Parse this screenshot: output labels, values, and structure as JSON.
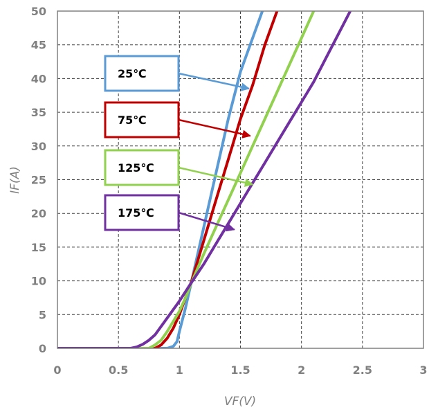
{
  "chart_data": {
    "type": "line",
    "xlabel": "VF(V)",
    "ylabel": "IF(A)",
    "xlim": [
      0,
      3
    ],
    "ylim": [
      0,
      50
    ],
    "xticks": [
      "0",
      "0.5",
      "1",
      "1.5",
      "2",
      "2.5",
      "3"
    ],
    "yticks": [
      "0",
      "5",
      "10",
      "15",
      "20",
      "25",
      "30",
      "35",
      "40",
      "45",
      "50"
    ],
    "grid": true,
    "series": [
      {
        "name": "25℃",
        "color": "#5B9BD5",
        "x": [
          0,
          0.9,
          0.95,
          0.98,
          1.0,
          1.05,
          1.1,
          1.2,
          1.3,
          1.4,
          1.5,
          1.6,
          1.68
        ],
        "y": [
          0,
          0,
          0.3,
          1,
          2.5,
          6,
          10,
          18,
          26,
          34,
          41,
          46,
          50
        ]
      },
      {
        "name": "75℃",
        "color": "#C00000",
        "x": [
          0,
          0.8,
          0.85,
          0.9,
          0.95,
          1.0,
          1.05,
          1.1,
          1.2,
          1.3,
          1.4,
          1.5,
          1.6,
          1.7,
          1.8
        ],
        "y": [
          0,
          0,
          0.5,
          1.5,
          3,
          5,
          7.5,
          10,
          16,
          22,
          28,
          34,
          39,
          45,
          50
        ]
      },
      {
        "name": "125℃",
        "color": "#92D050",
        "x": [
          0,
          0.75,
          0.8,
          0.85,
          0.9,
          0.95,
          1.0,
          1.05,
          1.1,
          1.2,
          1.3,
          1.4,
          1.5,
          1.6,
          1.7,
          1.8,
          1.9,
          2.0,
          2.1
        ],
        "y": [
          0,
          0,
          0.5,
          1.2,
          2.5,
          4,
          5.5,
          7.5,
          9.8,
          14,
          18,
          22,
          26,
          30,
          34,
          38,
          42,
          46,
          50
        ]
      },
      {
        "name": "175℃",
        "color": "#7030A0",
        "x": [
          0,
          0.6,
          0.65,
          0.7,
          0.75,
          0.8,
          0.9,
          1.0,
          1.1,
          1.2,
          1.3,
          1.4,
          1.5,
          1.6,
          1.7,
          1.8,
          1.9,
          2.0,
          2.1,
          2.2,
          2.3,
          2.4
        ],
        "y": [
          0,
          0,
          0.2,
          0.6,
          1.2,
          2,
          4.5,
          7,
          9.8,
          12.5,
          15.5,
          18.5,
          21.5,
          24.5,
          27.5,
          30.5,
          33.5,
          36.5,
          39.5,
          43,
          46.5,
          50
        ]
      }
    ],
    "annotations": [
      {
        "text": "25℃",
        "color": "#5B9BD5",
        "arrow_to": [
          1.57,
          38.5
        ]
      },
      {
        "text": "75℃",
        "color": "#C00000",
        "arrow_to": [
          1.58,
          31.5
        ]
      },
      {
        "text": "125℃",
        "color": "#92D050",
        "arrow_to": [
          1.6,
          24.3
        ]
      },
      {
        "text": "175℃",
        "color": "#7030A0",
        "arrow_to": [
          1.45,
          17.6
        ]
      }
    ],
    "axis_color": "#808080",
    "grid_color": "#404040"
  }
}
